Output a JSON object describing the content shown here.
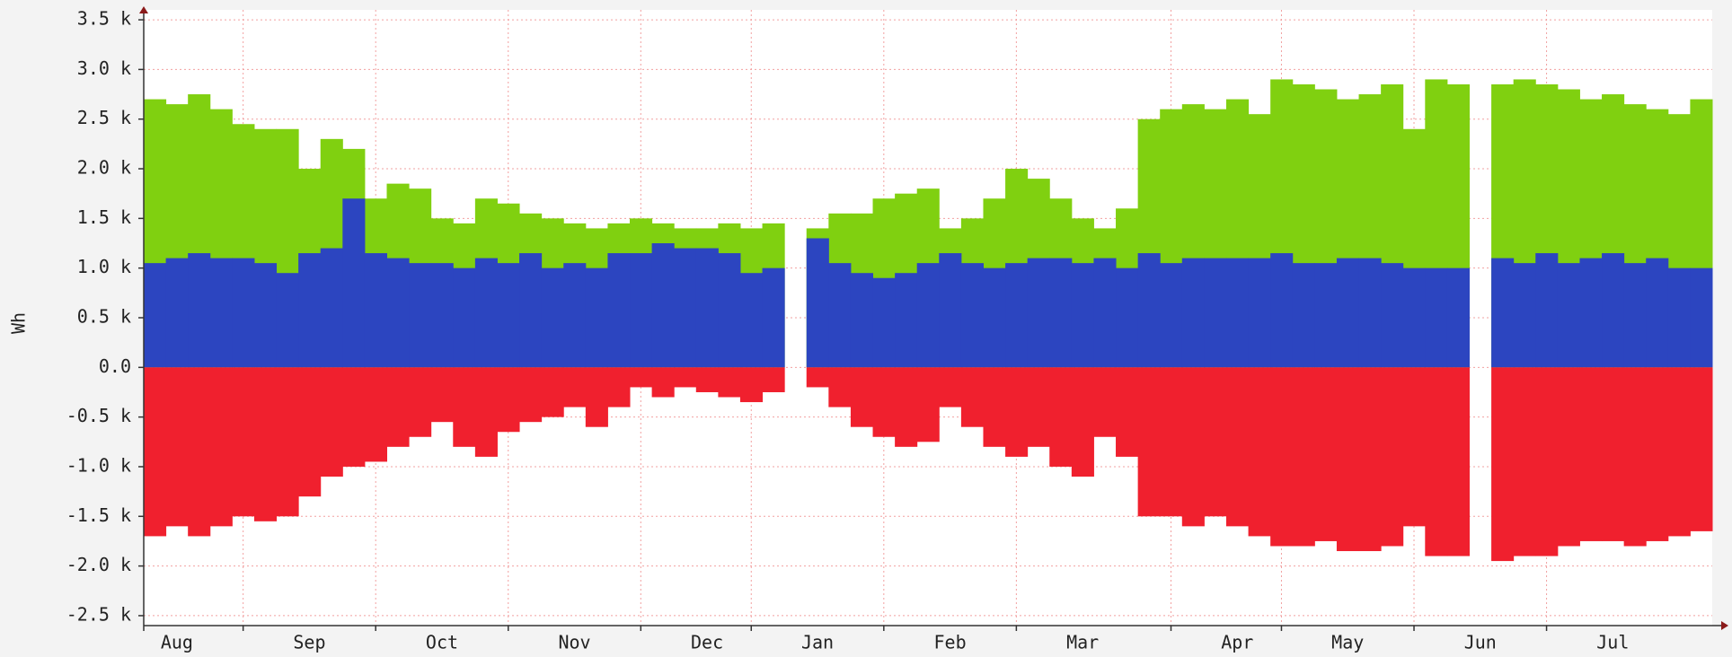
{
  "chart_data": {
    "type": "bar",
    "ylabel": "Wh",
    "categories": [
      null,
      "Aug",
      null,
      null,
      null,
      null,
      null,
      "Sep",
      null,
      null,
      null,
      null,
      null,
      "Oct",
      null,
      null,
      null,
      null,
      null,
      "Nov",
      null,
      null,
      null,
      null,
      null,
      "Dec",
      null,
      null,
      null,
      null,
      "Jan",
      null,
      null,
      null,
      null,
      null,
      "Feb",
      null,
      null,
      null,
      null,
      null,
      "Mar",
      null,
      null,
      null,
      null,
      null,
      null,
      "Apr",
      null,
      null,
      null,
      null,
      "May",
      null,
      null,
      null,
      null,
      null,
      "Jun",
      null,
      null,
      null,
      null,
      null,
      "Jul",
      null,
      null,
      null,
      null
    ],
    "series": [
      {
        "color": "#80d010",
        "values": [
          2700,
          2650,
          2750,
          2600,
          2450,
          2400,
          2400,
          2000,
          2300,
          2200,
          1700,
          1850,
          1800,
          1500,
          1450,
          1700,
          1650,
          1550,
          1500,
          1450,
          1400,
          1450,
          1500,
          1450,
          1400,
          1400,
          1450,
          1400,
          1450,
          null,
          1400,
          1550,
          1550,
          1700,
          1750,
          1800,
          1400,
          1500,
          1700,
          2000,
          1900,
          1700,
          1500,
          1400,
          1600,
          2500,
          2600,
          2650,
          2600,
          2700,
          2550,
          2900,
          2850,
          2800,
          2700,
          2750,
          2850,
          2400,
          2900,
          2850,
          null,
          2850,
          2900,
          2850,
          2800,
          2700,
          2750,
          2650,
          2600,
          2550,
          2700
        ]
      },
      {
        "color": "#2c45c0",
        "values": [
          1050,
          1100,
          1150,
          1100,
          1100,
          1050,
          950,
          1150,
          1200,
          1700,
          1150,
          1100,
          1050,
          1050,
          1000,
          1100,
          1050,
          1150,
          1000,
          1050,
          1000,
          1150,
          1150,
          1250,
          1200,
          1200,
          1150,
          950,
          1000,
          null,
          1300,
          1050,
          950,
          900,
          950,
          1050,
          1150,
          1050,
          1000,
          1050,
          1100,
          1100,
          1050,
          1100,
          1000,
          1150,
          1050,
          1100,
          1100,
          1100,
          1100,
          1150,
          1050,
          1050,
          1100,
          1100,
          1050,
          1000,
          1000,
          1000,
          null,
          1100,
          1050,
          1150,
          1050,
          1100,
          1150,
          1050,
          1100,
          1000,
          1000
        ]
      },
      {
        "color": "#f0202e",
        "values": [
          -1700,
          -1600,
          -1700,
          -1600,
          -1500,
          -1550,
          -1500,
          -1300,
          -1100,
          -1000,
          -950,
          -800,
          -700,
          -550,
          -800,
          -900,
          -650,
          -550,
          -500,
          -400,
          -600,
          -400,
          -200,
          -300,
          -200,
          -250,
          -300,
          -350,
          -250,
          null,
          -200,
          -400,
          -600,
          -700,
          -800,
          -750,
          -400,
          -600,
          -800,
          -900,
          -800,
          -1000,
          -1100,
          -700,
          -900,
          -1500,
          -1500,
          -1600,
          -1500,
          -1600,
          -1700,
          -1800,
          -1800,
          -1750,
          -1850,
          -1850,
          -1800,
          -1600,
          -1900,
          -1900,
          null,
          -1950,
          -1900,
          -1900,
          -1800,
          -1750,
          -1750,
          -1800,
          -1750,
          -1700,
          -1650
        ]
      }
    ],
    "ylim": [
      -2600,
      3600
    ],
    "yticks": [
      {
        "value": -2500,
        "label": "-2.5 k"
      },
      {
        "value": -2000,
        "label": "-2.0 k"
      },
      {
        "value": -1500,
        "label": "-1.5 k"
      },
      {
        "value": -1000,
        "label": "-1.0 k"
      },
      {
        "value": -500,
        "label": "-0.5 k"
      },
      {
        "value": 0,
        "label": "0.0"
      },
      {
        "value": 500,
        "label": "0.5 k"
      },
      {
        "value": 1000,
        "label": "1.0 k"
      },
      {
        "value": 1500,
        "label": "1.5 k"
      },
      {
        "value": 2000,
        "label": "2.0 k"
      },
      {
        "value": 2500,
        "label": "2.5 k"
      },
      {
        "value": 3000,
        "label": "3.0 k"
      },
      {
        "value": 3500,
        "label": "3.5 k"
      }
    ],
    "grid": true
  }
}
